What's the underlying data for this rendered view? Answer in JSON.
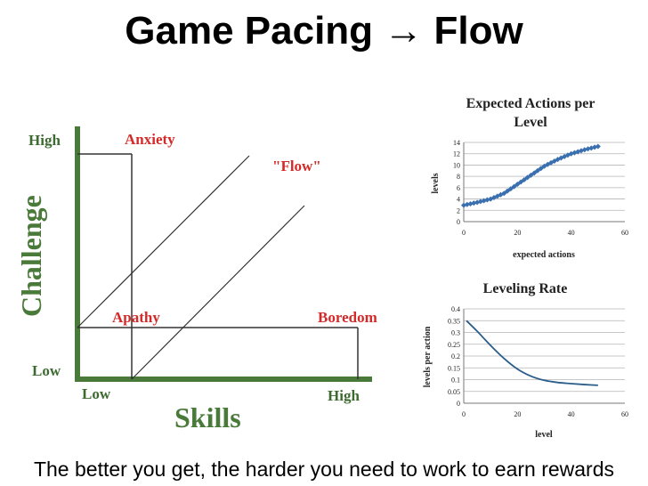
{
  "slide": {
    "title": "Game Pacing → Flow",
    "caption": "The better you get, the harder you need to work to earn rewards"
  },
  "flow_diagram": {
    "y_axis_label": "Challenge",
    "x_axis_label": "Skills",
    "y_high": "High",
    "y_low": "Low",
    "x_low": "Low",
    "x_high": "High",
    "regions": {
      "anxiety": "Anxiety",
      "flow": "\"Flow\"",
      "apathy": "Apathy",
      "boredom": "Boredom"
    },
    "colors": {
      "axis": "#4a7a3a",
      "region_label": "#d42a2a",
      "lines": "#333333"
    }
  },
  "chart_data": [
    {
      "type": "line",
      "title": "Expected Actions per Level",
      "xlabel": "expected actions",
      "ylabel": "levels",
      "xlim": [
        0,
        60
      ],
      "ylim": [
        0,
        14
      ],
      "xticks": [
        0,
        20,
        40,
        60
      ],
      "yticks": [
        0,
        2,
        4,
        6,
        8,
        10,
        12,
        14
      ],
      "marker": "diamond",
      "color": "#3a6fb0",
      "x": [
        0,
        5,
        10,
        15,
        20,
        25,
        30,
        35,
        40,
        45,
        50
      ],
      "y": [
        2.9,
        3.4,
        4.0,
        5.0,
        6.6,
        8.2,
        9.8,
        11.0,
        12.0,
        12.7,
        13.3
      ]
    },
    {
      "type": "line",
      "title": "Leveling Rate",
      "xlabel": "level",
      "ylabel": "levels per action",
      "xlim": [
        0,
        60
      ],
      "ylim": [
        0,
        0.4
      ],
      "xticks": [
        0,
        20,
        40,
        60
      ],
      "yticks": [
        0,
        0.05,
        0.1,
        0.15,
        0.2,
        0.25,
        0.3,
        0.35,
        0.4
      ],
      "color": "#2b5d8a",
      "x": [
        1,
        5,
        10,
        15,
        20,
        25,
        30,
        35,
        40,
        45,
        50
      ],
      "y": [
        0.35,
        0.305,
        0.245,
        0.19,
        0.145,
        0.115,
        0.097,
        0.088,
        0.083,
        0.079,
        0.076
      ]
    }
  ]
}
